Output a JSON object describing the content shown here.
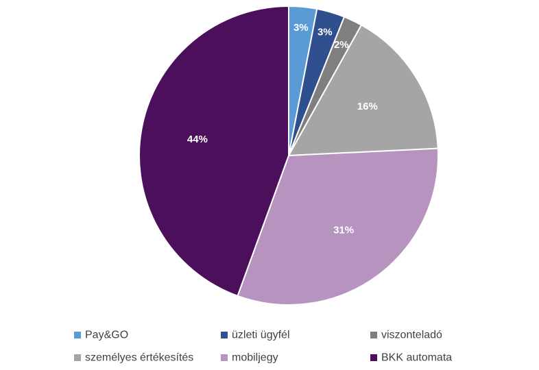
{
  "chart_data": {
    "type": "pie",
    "title": "",
    "start_angle_deg": 0,
    "direction": "clockwise",
    "legend_position": "bottom",
    "slices": [
      {
        "name": "Pay&GO",
        "value": 3,
        "label": "3%",
        "color": "#5b9bd5",
        "label_color": "#ffffff"
      },
      {
        "name": "üzleti ügyfél",
        "value": 3,
        "label": "3%",
        "color": "#2f4f8f",
        "label_color": "#ffffff"
      },
      {
        "name": "viszonteladó",
        "value": 2,
        "label": "2%",
        "color": "#7f7f7f",
        "label_color": "#ffffff"
      },
      {
        "name": "személyes értékesítés",
        "value": 16,
        "label": "16%",
        "color": "#a5a5a5",
        "label_color": "#ffffff"
      },
      {
        "name": "mobiljegy",
        "value": 31,
        "label": "31%",
        "color": "#b794c0",
        "label_color": "#ffffff"
      },
      {
        "name": "BKK automata",
        "value": 44,
        "label": "44%",
        "color": "#4b0f5c",
        "label_color": "#ffffff"
      }
    ]
  }
}
